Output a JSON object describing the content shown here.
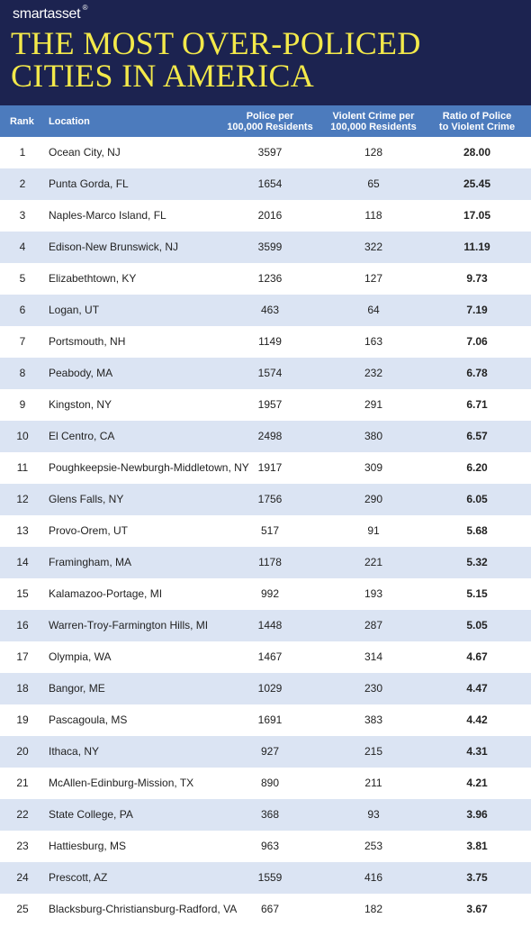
{
  "brand": {
    "name_bold": "smart",
    "name_light": "asset",
    "mark": "®"
  },
  "title": {
    "line1": "THE MOST OVER-POLICED",
    "line2": "CITIES IN AMERICA"
  },
  "colors": {
    "header_bg": "#1c2350",
    "title": "#f3e94a",
    "table_header_bg": "#4c7bbd",
    "row_alt": "#dbe4f3"
  },
  "chart_data": {
    "type": "table",
    "columns": [
      {
        "key": "rank",
        "label": "Rank"
      },
      {
        "key": "location",
        "label": "Location"
      },
      {
        "key": "police",
        "label": "Police per\n100,000 Residents"
      },
      {
        "key": "crime",
        "label": "Violent Crime per\n100,000 Residents"
      },
      {
        "key": "ratio",
        "label": "Ratio of Police\nto Violent Crime"
      }
    ],
    "rows": [
      {
        "rank": "1",
        "location": "Ocean City, NJ",
        "police": "3597",
        "crime": "128",
        "ratio": "28.00"
      },
      {
        "rank": "2",
        "location": "Punta Gorda, FL",
        "police": "1654",
        "crime": "65",
        "ratio": "25.45"
      },
      {
        "rank": "3",
        "location": "Naples-Marco Island, FL",
        "police": "2016",
        "crime": "118",
        "ratio": "17.05"
      },
      {
        "rank": "4",
        "location": "Edison-New Brunswick, NJ",
        "police": "3599",
        "crime": "322",
        "ratio": "11.19"
      },
      {
        "rank": "5",
        "location": "Elizabethtown, KY",
        "police": "1236",
        "crime": "127",
        "ratio": "9.73"
      },
      {
        "rank": "6",
        "location": "Logan, UT",
        "police": "463",
        "crime": "64",
        "ratio": "7.19"
      },
      {
        "rank": "7",
        "location": "Portsmouth, NH",
        "police": "1149",
        "crime": "163",
        "ratio": "7.06"
      },
      {
        "rank": "8",
        "location": "Peabody, MA",
        "police": "1574",
        "crime": "232",
        "ratio": "6.78"
      },
      {
        "rank": "9",
        "location": "Kingston, NY",
        "police": "1957",
        "crime": "291",
        "ratio": "6.71"
      },
      {
        "rank": "10",
        "location": "El Centro, CA",
        "police": "2498",
        "crime": "380",
        "ratio": "6.57"
      },
      {
        "rank": "11",
        "location": "Poughkeepsie-Newburgh-Middletown, NY",
        "police": "1917",
        "crime": "309",
        "ratio": "6.20"
      },
      {
        "rank": "12",
        "location": "Glens Falls, NY",
        "police": "1756",
        "crime": "290",
        "ratio": "6.05"
      },
      {
        "rank": "13",
        "location": "Provo-Orem, UT",
        "police": "517",
        "crime": "91",
        "ratio": "5.68"
      },
      {
        "rank": "14",
        "location": "Framingham, MA",
        "police": "1178",
        "crime": "221",
        "ratio": "5.32"
      },
      {
        "rank": "15",
        "location": "Kalamazoo-Portage, MI",
        "police": "992",
        "crime": "193",
        "ratio": "5.15"
      },
      {
        "rank": "16",
        "location": "Warren-Troy-Farmington Hills, MI",
        "police": "1448",
        "crime": "287",
        "ratio": "5.05"
      },
      {
        "rank": "17",
        "location": "Olympia, WA",
        "police": "1467",
        "crime": "314",
        "ratio": "4.67"
      },
      {
        "rank": "18",
        "location": "Bangor, ME",
        "police": "1029",
        "crime": "230",
        "ratio": "4.47"
      },
      {
        "rank": "19",
        "location": "Pascagoula, MS",
        "police": "1691",
        "crime": "383",
        "ratio": "4.42"
      },
      {
        "rank": "20",
        "location": "Ithaca, NY",
        "police": "927",
        "crime": "215",
        "ratio": "4.31"
      },
      {
        "rank": "21",
        "location": "McAllen-Edinburg-Mission, TX",
        "police": "890",
        "crime": "211",
        "ratio": "4.21"
      },
      {
        "rank": "22",
        "location": "State College, PA",
        "police": "368",
        "crime": "93",
        "ratio": "3.96"
      },
      {
        "rank": "23",
        "location": "Hattiesburg, MS",
        "police": "963",
        "crime": "253",
        "ratio": "3.81"
      },
      {
        "rank": "24",
        "location": "Prescott, AZ",
        "police": "1559",
        "crime": "416",
        "ratio": "3.75"
      },
      {
        "rank": "25",
        "location": "Blacksburg-Christiansburg-Radford, VA",
        "police": "667",
        "crime": "182",
        "ratio": "3.67"
      }
    ]
  }
}
